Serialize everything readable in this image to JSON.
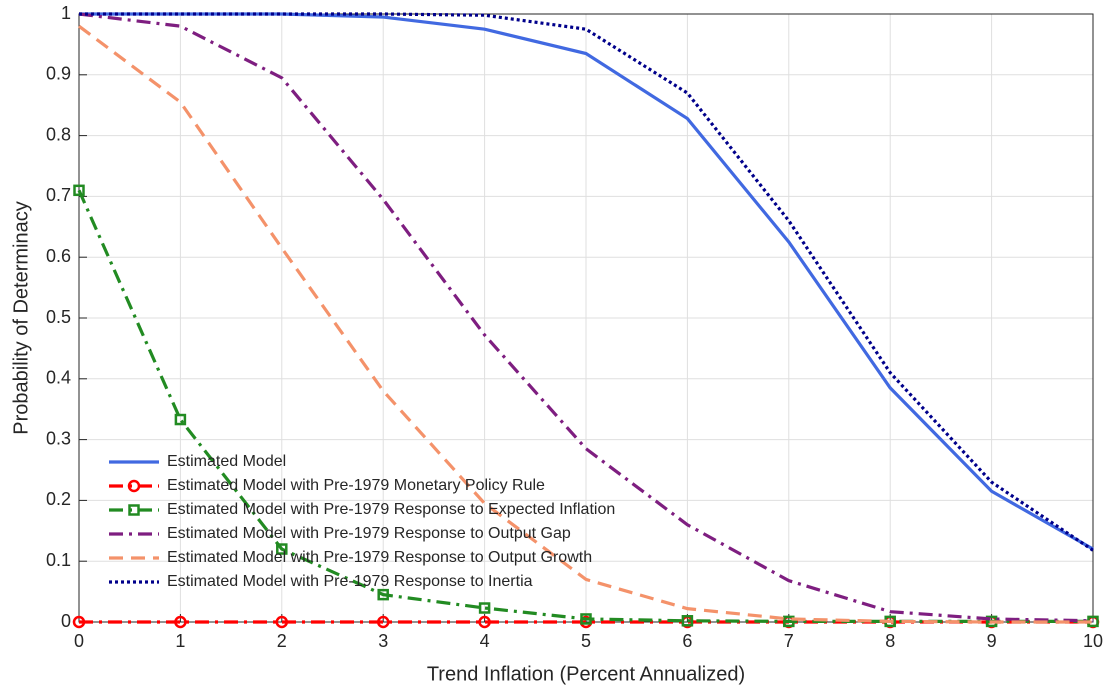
{
  "chart_data": {
    "type": "line",
    "xlabel": "Trend Inflation (Percent Annualized)",
    "ylabel": "Probability of Determinacy",
    "x": [
      0,
      1,
      2,
      3,
      4,
      5,
      6,
      7,
      8,
      9,
      10
    ],
    "series": [
      {
        "name": "Estimated Model",
        "color": "#4169e1",
        "linestyle": "solid",
        "marker": "none",
        "values": [
          1,
          1,
          1,
          0.995,
          0.975,
          0.935,
          0.828,
          0.625,
          0.385,
          0.215,
          0.12
        ]
      },
      {
        "name": "Estimated Model with Pre-1979 Monetary Policy Rule",
        "color": "#ff0000",
        "linestyle": "dashdot",
        "marker": "circle",
        "values": [
          0,
          0,
          0,
          0,
          0,
          0,
          0,
          0,
          0,
          0,
          0
        ]
      },
      {
        "name": "Estimated Model with Pre-1979 Response to Expected Inflation",
        "color": "#228b22",
        "linestyle": "dashdot",
        "marker": "square",
        "values": [
          0.71,
          0.333,
          0.12,
          0.045,
          0.023,
          0.005,
          0.002,
          0.001,
          0.001,
          0.001,
          0.001
        ]
      },
      {
        "name": "Estimated Model with Pre-1979 Response to Output Gap",
        "color": "#7e1e80",
        "linestyle": "dashdot",
        "marker": "none",
        "values": [
          1,
          0.98,
          0.895,
          0.695,
          0.472,
          0.285,
          0.16,
          0.068,
          0.017,
          0.005,
          0.002
        ]
      },
      {
        "name": "Estimated Model with Pre-1979 Response to Output Growth",
        "color": "#f4926a",
        "linestyle": "dashed",
        "marker": "none",
        "values": [
          0.98,
          0.855,
          0.615,
          0.38,
          0.195,
          0.07,
          0.022,
          0.005,
          0.001,
          0,
          0
        ]
      },
      {
        "name": "Estimated Model with Pre-1979 Response to Inertia",
        "color": "#00008b",
        "linestyle": "dotted",
        "marker": "none",
        "values": [
          1,
          1,
          1,
          1,
          0.998,
          0.975,
          0.87,
          0.66,
          0.41,
          0.23,
          0.118
        ]
      }
    ],
    "xlim": [
      0,
      10
    ],
    "xticks": [
      0,
      1,
      2,
      3,
      4,
      5,
      6,
      7,
      8,
      9,
      10
    ],
    "ylim": [
      0,
      1
    ],
    "yticks": [
      0,
      0.1,
      0.2,
      0.3,
      0.4,
      0.5,
      0.6,
      0.7,
      0.8,
      0.9,
      1
    ],
    "grid": true,
    "legend": "lower left"
  }
}
